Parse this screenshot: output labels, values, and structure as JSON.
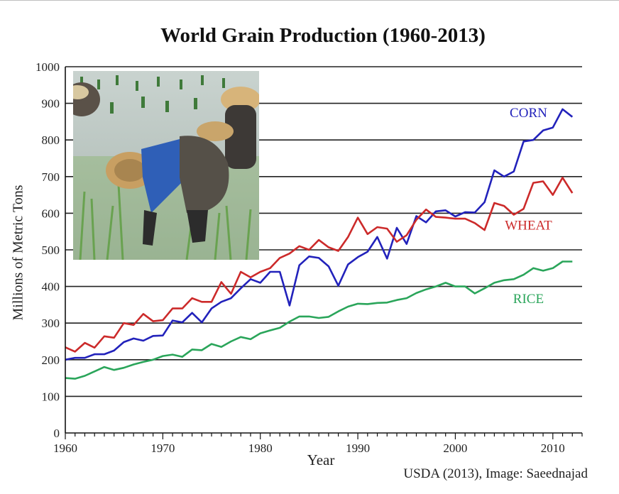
{
  "chart_data": {
    "type": "line",
    "title": "World Grain Production (1960-2013)",
    "xlabel": "Year",
    "ylabel": "Millions of Metric Tons",
    "xlim": [
      1960,
      2013
    ],
    "ylim": [
      0,
      1000
    ],
    "x_ticks": [
      1960,
      1970,
      1980,
      1990,
      2000,
      2010
    ],
    "y_ticks": [
      0,
      100,
      200,
      300,
      400,
      500,
      600,
      700,
      800,
      900,
      1000
    ],
    "grid": "horizontal",
    "x": [
      1960,
      1961,
      1962,
      1963,
      1964,
      1965,
      1966,
      1967,
      1968,
      1969,
      1970,
      1971,
      1972,
      1973,
      1974,
      1975,
      1976,
      1977,
      1978,
      1979,
      1980,
      1981,
      1982,
      1983,
      1984,
      1985,
      1986,
      1987,
      1988,
      1989,
      1990,
      1991,
      1992,
      1993,
      1994,
      1995,
      1996,
      1997,
      1998,
      1999,
      2000,
      2001,
      2002,
      2003,
      2004,
      2005,
      2006,
      2007,
      2008,
      2009,
      2010,
      2011,
      2012
    ],
    "series": [
      {
        "name": "CORN",
        "color": "#2222bb",
        "values": [
          200,
          205,
          205,
          215,
          215,
          225,
          248,
          258,
          252,
          265,
          266,
          307,
          302,
          328,
          302,
          340,
          358,
          368,
          395,
          420,
          410,
          440,
          440,
          348,
          458,
          482,
          478,
          455,
          402,
          460,
          480,
          495,
          535,
          476,
          560,
          516,
          592,
          575,
          605,
          608,
          591,
          603,
          602,
          630,
          717,
          700,
          714,
          796,
          800,
          826,
          834,
          884,
          863
        ]
      },
      {
        "name": "WHEAT",
        "color": "#cc2a2a",
        "values": [
          234,
          222,
          246,
          233,
          264,
          260,
          300,
          295,
          325,
          305,
          308,
          340,
          340,
          368,
          358,
          358,
          412,
          380,
          440,
          425,
          440,
          450,
          478,
          490,
          510,
          500,
          527,
          507,
          497,
          535,
          588,
          543,
          562,
          558,
          522,
          540,
          582,
          610,
          590,
          588,
          585,
          585,
          573,
          554,
          628,
          620,
          596,
          612,
          683,
          687,
          650,
          697,
          655
        ]
      },
      {
        "name": "RICE",
        "color": "#2aa55a",
        "values": [
          150,
          148,
          156,
          168,
          180,
          172,
          178,
          187,
          194,
          200,
          210,
          214,
          208,
          228,
          226,
          243,
          235,
          250,
          262,
          256,
          272,
          280,
          287,
          304,
          318,
          318,
          314,
          317,
          332,
          345,
          353,
          352,
          355,
          356,
          363,
          368,
          382,
          392,
          400,
          410,
          400,
          400,
          381,
          395,
          410,
          417,
          420,
          432,
          450,
          443,
          450,
          468,
          468
        ]
      }
    ]
  },
  "credit": "USDA (2013), Image: Saeednajad"
}
